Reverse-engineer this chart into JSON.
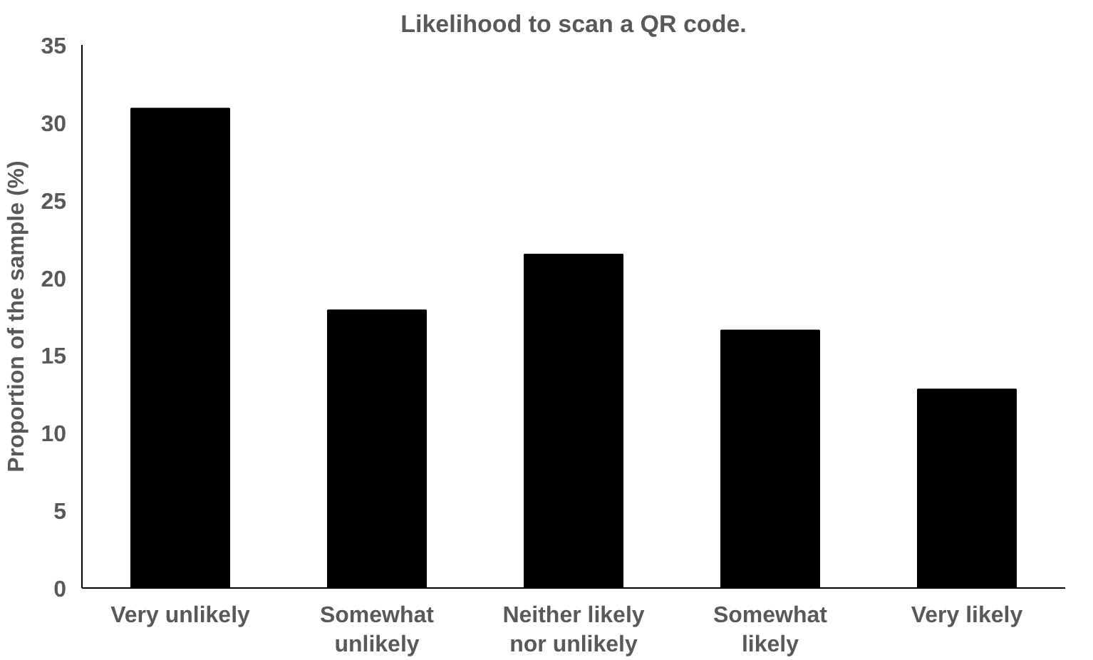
{
  "chart_data": {
    "type": "bar",
    "title": "Likelihood to scan a QR code.",
    "ylabel": "Proportion of the sample (%)",
    "categories": [
      "Very unlikely",
      "Somewhat unlikely",
      "Neither likely nor unlikely",
      "Somewhat likely",
      "Very likely"
    ],
    "values": [
      30.9,
      17.9,
      21.5,
      16.6,
      12.8
    ],
    "color": "#000000",
    "ylim": [
      0,
      35
    ],
    "yticks": [
      0,
      5,
      10,
      15,
      20,
      25,
      30,
      35
    ],
    "grid": false
  }
}
